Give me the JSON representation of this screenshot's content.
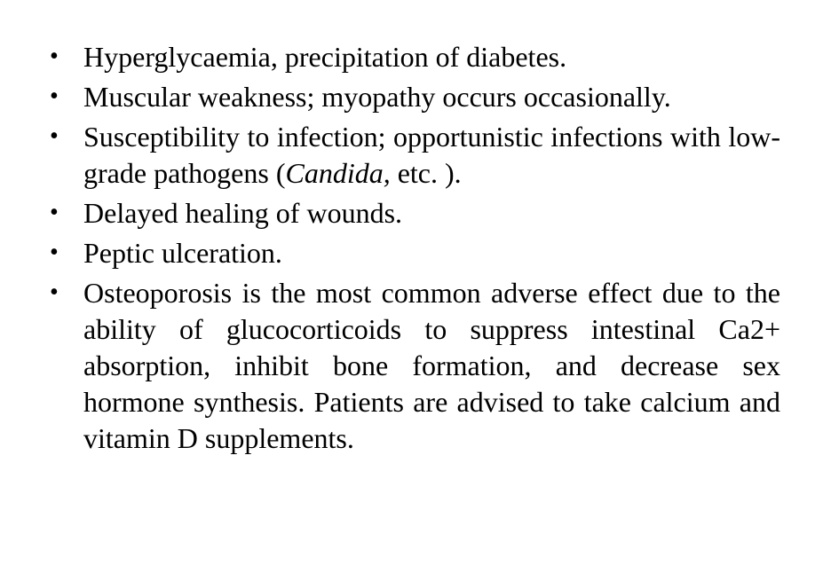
{
  "list": {
    "items": [
      {
        "text": "Hyperglycaemia, precipitation of diabetes."
      },
      {
        "text": "Muscular weakness; myopathy occurs occasionally."
      },
      {
        "pre": "Susceptibility to infection; opportunistic infections with low-grade pathogens (",
        "italic": "Candida,",
        "post": " etc. )."
      },
      {
        "text": "Delayed healing of wounds."
      },
      {
        "text": "Peptic ulceration."
      },
      {
        "text": "Osteoporosis is the most common adverse effect due to the ability of glucocorticoids to suppress intestinal Ca2+ absorption, inhibit bone formation, and decrease sex hormone synthesis. Patients are advised to take calcium and vitamin D supplements."
      }
    ]
  },
  "style": {
    "background_color": "#ffffff",
    "text_color": "#000000",
    "font_family": "Times New Roman",
    "font_size_pt": 24,
    "bullet_char": "•",
    "text_align": "justify",
    "line_height": 1.28
  }
}
